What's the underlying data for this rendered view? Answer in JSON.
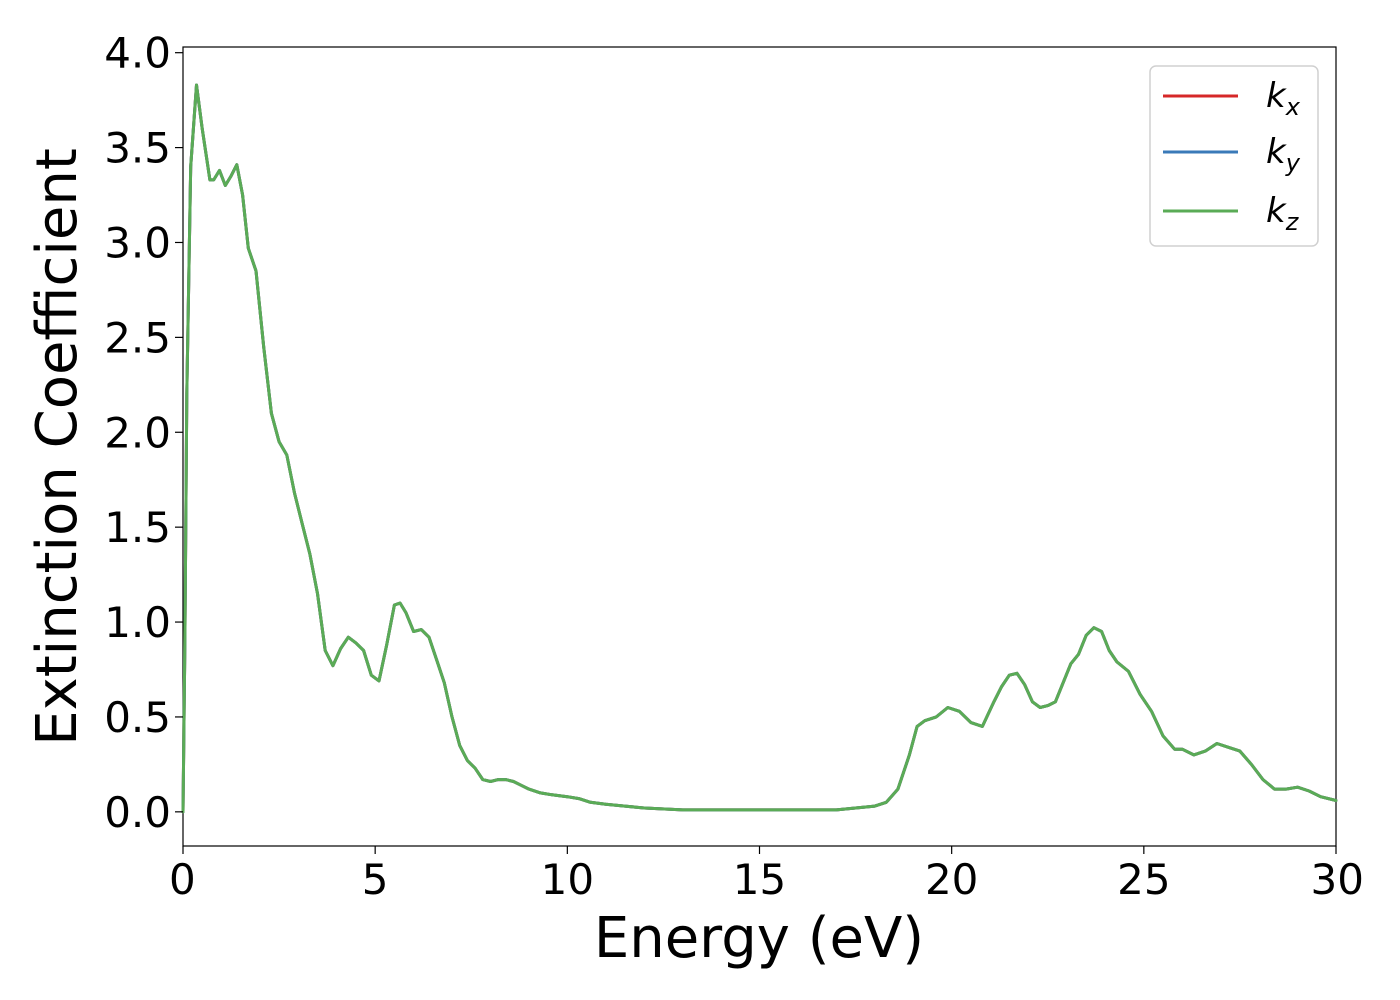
{
  "chart_data": {
    "type": "line",
    "title": "",
    "xlabel": "Energy (eV)",
    "ylabel": "Extinction Coefficient",
    "xlim": [
      0,
      30
    ],
    "ylim": [
      -0.18,
      4.03
    ],
    "xticks": [
      0,
      5,
      10,
      15,
      20,
      25,
      30
    ],
    "xtick_labels": [
      "0",
      "5",
      "10",
      "15",
      "20",
      "25",
      "30"
    ],
    "yticks": [
      0.0,
      0.5,
      1.0,
      1.5,
      2.0,
      2.5,
      3.0,
      3.5,
      4.0
    ],
    "ytick_labels": [
      "0.0",
      "0.5",
      "1.0",
      "1.5",
      "2.0",
      "2.5",
      "3.0",
      "3.5",
      "4.0"
    ],
    "grid": false,
    "legend_position": "top-right",
    "x": [
      0.0,
      0.05,
      0.1,
      0.2,
      0.35,
      0.5,
      0.7,
      0.8,
      0.95,
      1.1,
      1.25,
      1.4,
      1.55,
      1.7,
      1.9,
      2.1,
      2.3,
      2.5,
      2.7,
      2.9,
      3.1,
      3.3,
      3.5,
      3.7,
      3.9,
      4.1,
      4.3,
      4.5,
      4.7,
      4.9,
      5.1,
      5.3,
      5.5,
      5.65,
      5.8,
      6.0,
      6.2,
      6.4,
      6.6,
      6.8,
      7.0,
      7.2,
      7.4,
      7.6,
      7.8,
      8.0,
      8.2,
      8.4,
      8.6,
      8.8,
      9.0,
      9.3,
      9.6,
      10.0,
      10.3,
      10.6,
      11.0,
      11.5,
      12.0,
      13.0,
      14.0,
      15.0,
      16.0,
      17.0,
      17.5,
      18.0,
      18.3,
      18.6,
      18.9,
      19.1,
      19.3,
      19.6,
      19.9,
      20.2,
      20.5,
      20.8,
      21.1,
      21.3,
      21.5,
      21.7,
      21.9,
      22.1,
      22.3,
      22.5,
      22.7,
      22.9,
      23.1,
      23.3,
      23.5,
      23.7,
      23.9,
      24.1,
      24.3,
      24.6,
      24.9,
      25.2,
      25.5,
      25.8,
      26.0,
      26.3,
      26.6,
      26.9,
      27.2,
      27.5,
      27.8,
      28.1,
      28.4,
      28.7,
      29.0,
      29.3,
      29.6,
      30.0
    ],
    "series": [
      {
        "name": "k_x",
        "color": "#d62728",
        "values": [
          0.0,
          0.9,
          2.2,
          3.4,
          3.83,
          3.6,
          3.33,
          3.33,
          3.38,
          3.3,
          3.35,
          3.41,
          3.25,
          2.97,
          2.85,
          2.45,
          2.1,
          1.95,
          1.88,
          1.68,
          1.52,
          1.36,
          1.15,
          0.85,
          0.77,
          0.86,
          0.92,
          0.89,
          0.85,
          0.72,
          0.69,
          0.88,
          1.09,
          1.1,
          1.05,
          0.95,
          0.96,
          0.92,
          0.8,
          0.68,
          0.5,
          0.35,
          0.27,
          0.23,
          0.17,
          0.16,
          0.17,
          0.17,
          0.16,
          0.14,
          0.12,
          0.1,
          0.09,
          0.08,
          0.07,
          0.05,
          0.04,
          0.03,
          0.02,
          0.01,
          0.01,
          0.01,
          0.01,
          0.01,
          0.02,
          0.03,
          0.05,
          0.12,
          0.3,
          0.45,
          0.48,
          0.5,
          0.55,
          0.53,
          0.47,
          0.45,
          0.58,
          0.66,
          0.72,
          0.73,
          0.67,
          0.58,
          0.55,
          0.56,
          0.58,
          0.68,
          0.78,
          0.83,
          0.93,
          0.97,
          0.95,
          0.85,
          0.79,
          0.74,
          0.62,
          0.53,
          0.4,
          0.33,
          0.33,
          0.3,
          0.32,
          0.36,
          0.34,
          0.32,
          0.25,
          0.17,
          0.12,
          0.12,
          0.13,
          0.11,
          0.08,
          0.06
        ]
      },
      {
        "name": "k_y",
        "color": "#3a7ab8",
        "values": [
          0.0,
          0.9,
          2.2,
          3.4,
          3.83,
          3.6,
          3.33,
          3.33,
          3.38,
          3.3,
          3.35,
          3.41,
          3.25,
          2.97,
          2.85,
          2.45,
          2.1,
          1.95,
          1.88,
          1.68,
          1.52,
          1.36,
          1.15,
          0.85,
          0.77,
          0.86,
          0.92,
          0.89,
          0.85,
          0.72,
          0.69,
          0.88,
          1.09,
          1.1,
          1.05,
          0.95,
          0.96,
          0.92,
          0.8,
          0.68,
          0.5,
          0.35,
          0.27,
          0.23,
          0.17,
          0.16,
          0.17,
          0.17,
          0.16,
          0.14,
          0.12,
          0.1,
          0.09,
          0.08,
          0.07,
          0.05,
          0.04,
          0.03,
          0.02,
          0.01,
          0.01,
          0.01,
          0.01,
          0.01,
          0.02,
          0.03,
          0.05,
          0.12,
          0.3,
          0.45,
          0.48,
          0.5,
          0.55,
          0.53,
          0.47,
          0.45,
          0.58,
          0.66,
          0.72,
          0.73,
          0.67,
          0.58,
          0.55,
          0.56,
          0.58,
          0.68,
          0.78,
          0.83,
          0.93,
          0.97,
          0.95,
          0.85,
          0.79,
          0.74,
          0.62,
          0.53,
          0.4,
          0.33,
          0.33,
          0.3,
          0.32,
          0.36,
          0.34,
          0.32,
          0.25,
          0.17,
          0.12,
          0.12,
          0.13,
          0.11,
          0.08,
          0.06
        ]
      },
      {
        "name": "k_z",
        "color": "#5aab56",
        "values": [
          0.0,
          0.9,
          2.2,
          3.4,
          3.83,
          3.6,
          3.33,
          3.33,
          3.38,
          3.3,
          3.35,
          3.41,
          3.25,
          2.97,
          2.85,
          2.45,
          2.1,
          1.95,
          1.88,
          1.68,
          1.52,
          1.36,
          1.15,
          0.85,
          0.77,
          0.86,
          0.92,
          0.89,
          0.85,
          0.72,
          0.69,
          0.88,
          1.09,
          1.1,
          1.05,
          0.95,
          0.96,
          0.92,
          0.8,
          0.68,
          0.5,
          0.35,
          0.27,
          0.23,
          0.17,
          0.16,
          0.17,
          0.17,
          0.16,
          0.14,
          0.12,
          0.1,
          0.09,
          0.08,
          0.07,
          0.05,
          0.04,
          0.03,
          0.02,
          0.01,
          0.01,
          0.01,
          0.01,
          0.01,
          0.02,
          0.03,
          0.05,
          0.12,
          0.3,
          0.45,
          0.48,
          0.5,
          0.55,
          0.53,
          0.47,
          0.45,
          0.58,
          0.66,
          0.72,
          0.73,
          0.67,
          0.58,
          0.55,
          0.56,
          0.58,
          0.68,
          0.78,
          0.83,
          0.93,
          0.97,
          0.95,
          0.85,
          0.79,
          0.74,
          0.62,
          0.53,
          0.4,
          0.33,
          0.33,
          0.3,
          0.32,
          0.36,
          0.34,
          0.32,
          0.25,
          0.17,
          0.12,
          0.12,
          0.13,
          0.11,
          0.08,
          0.06
        ]
      }
    ],
    "legend": [
      {
        "symbol": "k",
        "subscript": "x"
      },
      {
        "symbol": "k",
        "subscript": "y"
      },
      {
        "symbol": "k",
        "subscript": "z"
      }
    ]
  }
}
